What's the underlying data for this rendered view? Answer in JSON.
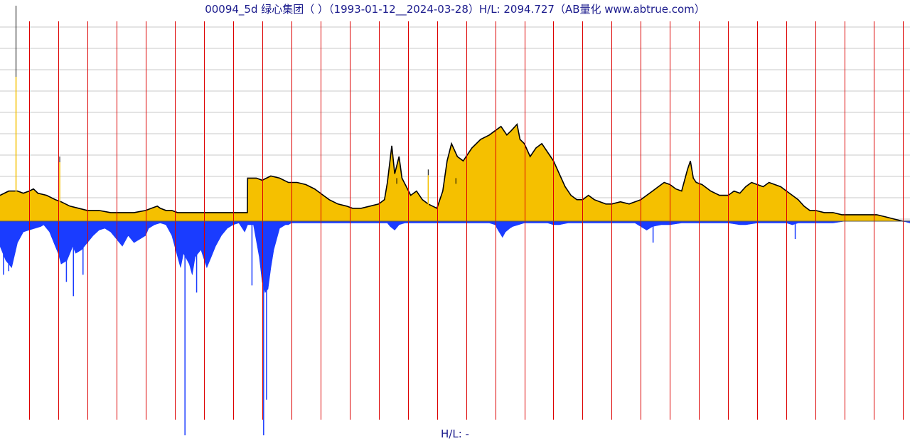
{
  "chart_data": {
    "type": "area",
    "title": "00094_5d 绿心集团（ ）（1993-01-12__2024-03-28）H/L: 2094.727（AB量化  www.abtrue.com）",
    "footer_text": "H/L: -",
    "x_range": [
      "1993-01-12",
      "2024-03-28"
    ],
    "colors": {
      "upper_fill": "#f5c000",
      "upper_outline": "#000000",
      "lower_fill": "#1a3cff",
      "year_line": "#dd0000",
      "grid": "#c8c8c8",
      "baseline": "#555555"
    },
    "grid": true,
    "year_lines_x": [
      1994,
      1995,
      1996,
      1997,
      1998,
      1999,
      2000,
      2001,
      2002,
      2003,
      2004,
      2005,
      2006,
      2007,
      2008,
      2009,
      2010,
      2011,
      2012,
      2013,
      2014,
      2015,
      2016,
      2017,
      2018,
      2019,
      2020,
      2021,
      2022,
      2023,
      2024
    ],
    "upper_series": {
      "name": "",
      "points": [
        [
          1993.0,
          12
        ],
        [
          1993.3,
          14
        ],
        [
          1993.6,
          14
        ],
        [
          1993.8,
          13
        ],
        [
          1994.0,
          14
        ],
        [
          1994.15,
          15
        ],
        [
          1994.3,
          13
        ],
        [
          1994.6,
          12
        ],
        [
          1994.9,
          10
        ],
        [
          1995.1,
          9
        ],
        [
          1995.4,
          7
        ],
        [
          1995.7,
          6
        ],
        [
          1996.0,
          5
        ],
        [
          1996.4,
          5
        ],
        [
          1996.8,
          4
        ],
        [
          1997.0,
          4
        ],
        [
          1997.3,
          4
        ],
        [
          1997.6,
          4
        ],
        [
          1998.0,
          5
        ],
        [
          1998.2,
          6
        ],
        [
          1998.4,
          7
        ],
        [
          1998.5,
          6
        ],
        [
          1998.7,
          5
        ],
        [
          1998.9,
          5
        ],
        [
          1999.1,
          4
        ],
        [
          1999.4,
          4
        ],
        [
          1999.7,
          4
        ],
        [
          2000.0,
          4
        ],
        [
          2000.3,
          4
        ],
        [
          2000.5,
          4
        ],
        [
          2001.0,
          4
        ],
        [
          2001.49,
          4
        ],
        [
          2001.5,
          20
        ],
        [
          2001.8,
          20
        ],
        [
          2002.0,
          19
        ],
        [
          2002.3,
          21
        ],
        [
          2002.6,
          20
        ],
        [
          2002.9,
          18
        ],
        [
          2003.2,
          18
        ],
        [
          2003.5,
          17
        ],
        [
          2003.8,
          15
        ],
        [
          2004.1,
          12
        ],
        [
          2004.3,
          10
        ],
        [
          2004.6,
          8
        ],
        [
          2004.9,
          7
        ],
        [
          2005.1,
          6
        ],
        [
          2005.4,
          6
        ],
        [
          2005.7,
          7
        ],
        [
          2006.0,
          8
        ],
        [
          2006.2,
          10
        ],
        [
          2006.3,
          18
        ],
        [
          2006.45,
          35
        ],
        [
          2006.55,
          22
        ],
        [
          2006.7,
          30
        ],
        [
          2006.8,
          20
        ],
        [
          2006.95,
          16
        ],
        [
          2007.1,
          12
        ],
        [
          2007.3,
          14
        ],
        [
          2007.5,
          10
        ],
        [
          2007.7,
          8
        ],
        [
          2008.0,
          6
        ],
        [
          2008.2,
          14
        ],
        [
          2008.35,
          28
        ],
        [
          2008.5,
          36
        ],
        [
          2008.7,
          30
        ],
        [
          2008.9,
          28
        ],
        [
          2009.2,
          34
        ],
        [
          2009.5,
          38
        ],
        [
          2009.8,
          40
        ],
        [
          2010.0,
          42
        ],
        [
          2010.2,
          44
        ],
        [
          2010.4,
          40
        ],
        [
          2010.55,
          42
        ],
        [
          2010.75,
          45
        ],
        [
          2010.85,
          38
        ],
        [
          2011.0,
          36
        ],
        [
          2011.2,
          30
        ],
        [
          2011.4,
          34
        ],
        [
          2011.6,
          36
        ],
        [
          2011.8,
          32
        ],
        [
          2012.0,
          28
        ],
        [
          2012.2,
          22
        ],
        [
          2012.4,
          16
        ],
        [
          2012.6,
          12
        ],
        [
          2012.8,
          10
        ],
        [
          2013.0,
          10
        ],
        [
          2013.2,
          12
        ],
        [
          2013.4,
          10
        ],
        [
          2013.6,
          9
        ],
        [
          2013.8,
          8
        ],
        [
          2014.0,
          8
        ],
        [
          2014.3,
          9
        ],
        [
          2014.6,
          8
        ],
        [
          2014.8,
          9
        ],
        [
          2015.0,
          10
        ],
        [
          2015.2,
          12
        ],
        [
          2015.4,
          14
        ],
        [
          2015.6,
          16
        ],
        [
          2015.8,
          18
        ],
        [
          2016.0,
          17
        ],
        [
          2016.2,
          15
        ],
        [
          2016.4,
          14
        ],
        [
          2016.6,
          24
        ],
        [
          2016.7,
          28
        ],
        [
          2016.8,
          20
        ],
        [
          2016.9,
          18
        ],
        [
          2017.1,
          17
        ],
        [
          2017.4,
          14
        ],
        [
          2017.7,
          12
        ],
        [
          2018.0,
          12
        ],
        [
          2018.2,
          14
        ],
        [
          2018.4,
          13
        ],
        [
          2018.6,
          16
        ],
        [
          2018.8,
          18
        ],
        [
          2019.0,
          17
        ],
        [
          2019.2,
          16
        ],
        [
          2019.4,
          18
        ],
        [
          2019.6,
          17
        ],
        [
          2019.8,
          16
        ],
        [
          2020.0,
          14
        ],
        [
          2020.2,
          12
        ],
        [
          2020.4,
          10
        ],
        [
          2020.6,
          7
        ],
        [
          2020.8,
          5
        ],
        [
          2021.0,
          5
        ],
        [
          2021.3,
          4
        ],
        [
          2021.6,
          4
        ],
        [
          2021.9,
          3
        ],
        [
          2022.2,
          3
        ],
        [
          2022.5,
          3
        ],
        [
          2022.8,
          3
        ],
        [
          2023.1,
          3
        ],
        [
          2023.4,
          2
        ],
        [
          2023.7,
          1
        ],
        [
          2024.0,
          0
        ],
        [
          2024.24,
          0
        ]
      ]
    },
    "upper_spikes": [
      [
        1993.55,
        100
      ],
      [
        1995.05,
        30
      ],
      [
        2006.62,
        20
      ],
      [
        2007.7,
        24
      ],
      [
        2008.65,
        20
      ]
    ],
    "lower_series": {
      "name": "",
      "points": [
        [
          1993.0,
          14
        ],
        [
          1993.2,
          22
        ],
        [
          1993.4,
          26
        ],
        [
          1993.6,
          12
        ],
        [
          1993.8,
          6
        ],
        [
          1994.0,
          5
        ],
        [
          1994.2,
          4
        ],
        [
          1994.4,
          3
        ],
        [
          1994.5,
          2
        ],
        [
          1994.7,
          6
        ],
        [
          1994.9,
          14
        ],
        [
          1995.0,
          18
        ],
        [
          1995.1,
          24
        ],
        [
          1995.3,
          22
        ],
        [
          1995.5,
          14
        ],
        [
          1995.6,
          18
        ],
        [
          1995.8,
          16
        ],
        [
          1996.0,
          12
        ],
        [
          1996.2,
          8
        ],
        [
          1996.4,
          5
        ],
        [
          1996.6,
          4
        ],
        [
          1996.8,
          6
        ],
        [
          1997.0,
          10
        ],
        [
          1997.2,
          14
        ],
        [
          1997.4,
          8
        ],
        [
          1997.6,
          12
        ],
        [
          1997.8,
          10
        ],
        [
          1998.0,
          8
        ],
        [
          1998.1,
          4
        ],
        [
          1998.3,
          2
        ],
        [
          1998.5,
          1
        ],
        [
          1998.7,
          2
        ],
        [
          1998.9,
          8
        ],
        [
          1999.1,
          20
        ],
        [
          1999.2,
          26
        ],
        [
          1999.3,
          18
        ],
        [
          1999.5,
          24
        ],
        [
          1999.6,
          30
        ],
        [
          1999.7,
          20
        ],
        [
          1999.9,
          16
        ],
        [
          2000.1,
          26
        ],
        [
          2000.25,
          20
        ],
        [
          2000.4,
          14
        ],
        [
          2000.6,
          8
        ],
        [
          2000.8,
          4
        ],
        [
          2001.0,
          2
        ],
        [
          2001.2,
          1
        ],
        [
          2001.4,
          6
        ],
        [
          2001.5,
          2
        ],
        [
          2001.7,
          2
        ],
        [
          2001.9,
          20
        ],
        [
          2002.0,
          34
        ],
        [
          2002.1,
          40
        ],
        [
          2002.2,
          38
        ],
        [
          2002.3,
          26
        ],
        [
          2002.4,
          16
        ],
        [
          2002.5,
          10
        ],
        [
          2002.6,
          4
        ],
        [
          2002.8,
          2
        ],
        [
          2002.9,
          2
        ],
        [
          2003.0,
          1
        ],
        [
          2003.2,
          1
        ],
        [
          2003.4,
          1
        ],
        [
          2003.6,
          1
        ],
        [
          2003.8,
          1
        ],
        [
          2004.0,
          1
        ],
        [
          2004.2,
          1
        ],
        [
          2004.4,
          1
        ],
        [
          2004.6,
          1
        ],
        [
          2005.0,
          1
        ],
        [
          2005.4,
          1
        ],
        [
          2005.8,
          1
        ],
        [
          2006.0,
          1
        ],
        [
          2006.3,
          1
        ],
        [
          2006.4,
          3
        ],
        [
          2006.55,
          5
        ],
        [
          2006.7,
          2
        ],
        [
          2006.9,
          1
        ],
        [
          2007.2,
          1
        ],
        [
          2007.6,
          1
        ],
        [
          2008.0,
          1
        ],
        [
          2008.3,
          1
        ],
        [
          2008.6,
          1
        ],
        [
          2009.0,
          1
        ],
        [
          2009.4,
          1
        ],
        [
          2009.8,
          1
        ],
        [
          2010.0,
          2
        ],
        [
          2010.1,
          5
        ],
        [
          2010.25,
          9
        ],
        [
          2010.35,
          6
        ],
        [
          2010.5,
          4
        ],
        [
          2010.6,
          3
        ],
        [
          2010.8,
          2
        ],
        [
          2011.0,
          1
        ],
        [
          2011.4,
          1
        ],
        [
          2011.8,
          1
        ],
        [
          2012.0,
          2
        ],
        [
          2012.2,
          2
        ],
        [
          2012.5,
          1
        ],
        [
          2013.0,
          1
        ],
        [
          2013.6,
          1
        ],
        [
          2014.0,
          1
        ],
        [
          2014.4,
          1
        ],
        [
          2014.8,
          1
        ],
        [
          2015.0,
          3
        ],
        [
          2015.2,
          5
        ],
        [
          2015.4,
          3
        ],
        [
          2015.7,
          2
        ],
        [
          2016.0,
          2
        ],
        [
          2016.4,
          1
        ],
        [
          2016.8,
          1
        ],
        [
          2017.2,
          1
        ],
        [
          2017.6,
          1
        ],
        [
          2018.0,
          1
        ],
        [
          2018.4,
          2
        ],
        [
          2018.6,
          2
        ],
        [
          2019.0,
          1
        ],
        [
          2019.4,
          1
        ],
        [
          2019.8,
          1
        ],
        [
          2020.0,
          1
        ],
        [
          2020.2,
          2
        ],
        [
          2020.4,
          1
        ],
        [
          2020.8,
          1
        ],
        [
          2021.2,
          1
        ],
        [
          2021.6,
          1
        ],
        [
          2022.0,
          0
        ],
        [
          2022.5,
          0
        ],
        [
          2023.0,
          0
        ],
        [
          2023.5,
          0
        ],
        [
          2024.0,
          0
        ],
        [
          2024.24,
          1
        ]
      ]
    },
    "lower_spikes": [
      [
        1993.12,
        30
      ],
      [
        1993.3,
        28
      ],
      [
        1995.28,
        34
      ],
      [
        1995.52,
        42
      ],
      [
        1995.85,
        30
      ],
      [
        1999.35,
        120
      ],
      [
        1999.75,
        40
      ],
      [
        2001.65,
        36
      ],
      [
        2002.05,
        120
      ],
      [
        2002.15,
        100
      ],
      [
        2015.42,
        12
      ],
      [
        2020.3,
        10
      ]
    ],
    "lower_min": -120
  }
}
